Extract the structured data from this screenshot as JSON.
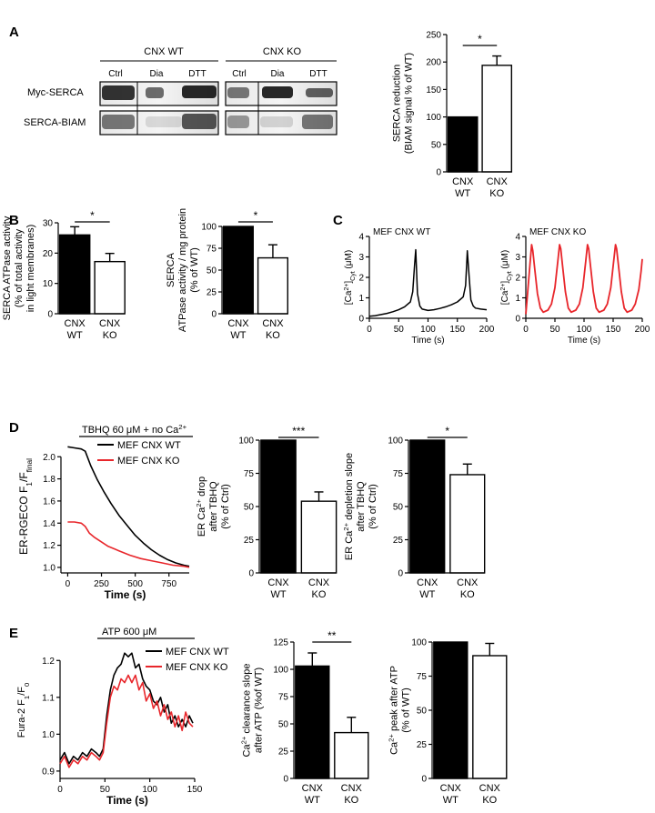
{
  "panel_labels": {
    "A": "A",
    "B": "B",
    "C": "C",
    "D": "D",
    "E": "E"
  },
  "blot": {
    "groups": [
      "CNX WT",
      "CNX KO"
    ],
    "lanes": [
      "Ctrl",
      "Dia",
      "DTT",
      "Ctrl",
      "Dia",
      "DTT"
    ],
    "rows": [
      "Myc-SERCA",
      "SERCA-BIAM"
    ]
  },
  "colors": {
    "wt": "#000000",
    "ko": "#ffffff",
    "trace_ko": "#e8262b"
  },
  "chart_data": [
    {
      "id": "A_bar",
      "type": "bar",
      "categories": [
        "CNX WT",
        "CNX KO"
      ],
      "values": [
        100,
        194
      ],
      "errors": [
        0,
        17
      ],
      "ylim": [
        0,
        250
      ],
      "yticks": [
        0,
        50,
        100,
        150,
        200,
        250
      ],
      "ylabel": [
        "SERCA reduction",
        "(BIAM signal % of WT)"
      ],
      "significance": "*"
    },
    {
      "id": "B_bar1",
      "type": "bar",
      "categories": [
        "CNX WT",
        "CNX KO"
      ],
      "values": [
        26,
        17.2
      ],
      "errors": [
        2.7,
        2.7
      ],
      "ylim": [
        0,
        30
      ],
      "yticks": [
        0,
        10,
        20,
        30
      ],
      "ylabel": [
        "SERCA ATPase activity",
        "(% of total activity",
        "in light membranes)"
      ],
      "significance": "*"
    },
    {
      "id": "B_bar2",
      "type": "bar",
      "categories": [
        "CNX WT",
        "CNX KO"
      ],
      "values": [
        100,
        64
      ],
      "errors": [
        0,
        15
      ],
      "ylim": [
        0,
        100
      ],
      "yticks": [
        0,
        25,
        50,
        75,
        100
      ],
      "ylabel": [
        "SERCA",
        "ATPase activity / mg protein",
        "(% of WT)"
      ],
      "significance": "*"
    },
    {
      "id": "C_wt",
      "type": "line",
      "title": "MEF CNX WT",
      "xlabel": "Time (s)",
      "ylabel": "[Ca2+]Cyt (μM)",
      "xlim": [
        0,
        200
      ],
      "ylim": [
        0,
        4
      ],
      "xticks": [
        0,
        50,
        100,
        150,
        200
      ],
      "yticks": [
        0,
        1,
        2,
        3,
        4
      ],
      "series": [
        {
          "color": "#000000",
          "x": [
            0,
            10,
            20,
            30,
            40,
            50,
            60,
            70,
            74,
            77,
            79,
            82,
            86,
            90,
            100,
            110,
            120,
            130,
            140,
            150,
            160,
            164,
            167,
            170,
            173,
            177,
            181,
            190,
            200
          ],
          "y": [
            0.1,
            0.13,
            0.18,
            0.24,
            0.32,
            0.42,
            0.56,
            0.8,
            1.3,
            2.6,
            3.35,
            1.2,
            0.6,
            0.45,
            0.38,
            0.42,
            0.48,
            0.56,
            0.66,
            0.8,
            1.05,
            1.6,
            3.3,
            2.1,
            0.9,
            0.6,
            0.5,
            0.45,
            0.42
          ]
        }
      ]
    },
    {
      "id": "C_ko",
      "type": "line",
      "title": "MEF CNX KO",
      "xlabel": "Time (s)",
      "ylabel": "[Ca2+]Cyt (μM)",
      "xlim": [
        0,
        200
      ],
      "ylim": [
        0,
        4
      ],
      "xticks": [
        0,
        50,
        100,
        150,
        200
      ],
      "yticks": [
        0,
        1,
        2,
        3,
        4
      ],
      "series": [
        {
          "color": "#e8262b",
          "x": [
            0,
            3,
            7,
            10,
            12,
            15,
            20,
            25,
            30,
            38,
            44,
            50,
            55,
            58,
            60,
            63,
            68,
            73,
            78,
            86,
            92,
            98,
            103,
            106,
            108,
            111,
            116,
            121,
            126,
            134,
            140,
            146,
            151,
            154,
            156,
            159,
            164,
            169,
            174,
            182,
            188,
            194,
            198,
            200
          ],
          "y": [
            0.2,
            1.2,
            2.6,
            3.6,
            3.3,
            2.5,
            1.2,
            0.5,
            0.3,
            0.4,
            0.7,
            1.5,
            2.8,
            3.6,
            3.4,
            2.6,
            1.3,
            0.5,
            0.3,
            0.4,
            0.7,
            1.5,
            2.8,
            3.6,
            3.4,
            2.6,
            1.3,
            0.5,
            0.3,
            0.4,
            0.7,
            1.5,
            2.8,
            3.6,
            3.4,
            2.6,
            1.3,
            0.5,
            0.3,
            0.4,
            0.7,
            1.4,
            2.3,
            2.9
          ]
        }
      ]
    },
    {
      "id": "D_trace",
      "type": "line",
      "annotation": "TBHQ 60 μM + no Ca2+",
      "xlabel": "Time (s)",
      "ylabel": "ER-RGECO F1/Ffinal",
      "xlim": [
        -50,
        900
      ],
      "ylim": [
        0.95,
        2.15
      ],
      "xticks": [
        0,
        250,
        500,
        750
      ],
      "yticks": [
        1.0,
        1.2,
        1.4,
        1.6,
        1.8,
        2.0
      ],
      "ytick_labels": [
        "1.0",
        "1.2",
        "1.4",
        "1.6",
        "1.8",
        "2.0"
      ],
      "series": [
        {
          "name": "MEF CNX WT",
          "color": "#000000",
          "x": [
            0,
            50,
            100,
            130,
            170,
            220,
            270,
            320,
            380,
            440,
            500,
            560,
            620,
            680,
            740,
            800,
            860,
            900
          ],
          "y": [
            2.09,
            2.08,
            2.07,
            2.05,
            1.92,
            1.79,
            1.68,
            1.58,
            1.47,
            1.38,
            1.29,
            1.22,
            1.16,
            1.11,
            1.07,
            1.04,
            1.02,
            1.01
          ]
        },
        {
          "name": "MEF CNX KO",
          "color": "#e8262b",
          "x": [
            0,
            50,
            100,
            130,
            160,
            200,
            250,
            300,
            380,
            460,
            540,
            620,
            700,
            780,
            860,
            900
          ],
          "y": [
            1.41,
            1.41,
            1.4,
            1.37,
            1.31,
            1.27,
            1.23,
            1.19,
            1.15,
            1.11,
            1.08,
            1.06,
            1.04,
            1.02,
            1.01,
            1.0
          ]
        }
      ]
    },
    {
      "id": "D_bar1",
      "type": "bar",
      "categories": [
        "CNX WT",
        "CNX KO"
      ],
      "values": [
        100,
        54
      ],
      "errors": [
        0,
        7
      ],
      "ylim": [
        0,
        100
      ],
      "yticks": [
        0,
        25,
        50,
        75,
        100
      ],
      "ylabel": [
        "ER Ca2+ drop",
        "after TBHQ",
        "(% of Ctrl)"
      ],
      "significance": "***"
    },
    {
      "id": "D_bar2",
      "type": "bar",
      "categories": [
        "CNX WT",
        "CNX KO"
      ],
      "values": [
        100,
        74
      ],
      "errors": [
        0,
        8
      ],
      "ylim": [
        0,
        100
      ],
      "yticks": [
        0,
        25,
        50,
        75,
        100
      ],
      "ylabel": [
        "ER Ca2+ depletion slope",
        "after TBHQ",
        "(% of Ctrl)"
      ],
      "significance": "*"
    },
    {
      "id": "E_trace",
      "type": "line",
      "annotation": "ATP 600 μM",
      "xlabel": "Time (s)",
      "ylabel": "Fura-2 F1/F0",
      "xlim": [
        0,
        150
      ],
      "ylim": [
        0.88,
        1.25
      ],
      "xticks": [
        0,
        50,
        100,
        150
      ],
      "yticks": [
        0.9,
        1.0,
        1.1,
        1.2
      ],
      "ytick_labels": [
        "0.9",
        "1.0",
        "1.1",
        "1.2"
      ],
      "series": [
        {
          "name": "MEF CNX WT",
          "color": "#000000",
          "x": [
            0,
            5,
            10,
            15,
            20,
            25,
            30,
            35,
            40,
            44,
            48,
            52,
            56,
            60,
            64,
            68,
            72,
            76,
            80,
            84,
            88,
            92,
            96,
            100,
            104,
            108,
            112,
            116,
            120,
            124,
            128,
            132,
            136,
            140,
            144,
            148
          ],
          "y": [
            0.93,
            0.95,
            0.92,
            0.94,
            0.93,
            0.95,
            0.94,
            0.96,
            0.95,
            0.94,
            0.96,
            1.05,
            1.12,
            1.16,
            1.18,
            1.19,
            1.22,
            1.21,
            1.22,
            1.18,
            1.19,
            1.15,
            1.13,
            1.12,
            1.09,
            1.08,
            1.1,
            1.06,
            1.08,
            1.03,
            1.05,
            1.02,
            1.04,
            1.02,
            1.05,
            1.03
          ]
        },
        {
          "name": "MEF CNX KO",
          "color": "#e8262b",
          "x": [
            0,
            5,
            10,
            15,
            20,
            25,
            30,
            35,
            40,
            44,
            48,
            52,
            56,
            60,
            64,
            68,
            72,
            76,
            80,
            84,
            88,
            92,
            96,
            100,
            104,
            108,
            112,
            116,
            120,
            124,
            128,
            132,
            136,
            140,
            144,
            148
          ],
          "y": [
            0.92,
            0.94,
            0.91,
            0.93,
            0.92,
            0.94,
            0.93,
            0.95,
            0.94,
            0.93,
            0.95,
            1.03,
            1.1,
            1.13,
            1.12,
            1.15,
            1.14,
            1.16,
            1.14,
            1.16,
            1.12,
            1.14,
            1.09,
            1.11,
            1.07,
            1.09,
            1.05,
            1.08,
            1.04,
            1.06,
            1.02,
            1.05,
            1.01,
            1.06,
            1.03,
            1.02
          ]
        }
      ]
    },
    {
      "id": "E_bar1",
      "type": "bar",
      "categories": [
        "CNX WT",
        "CNX KO"
      ],
      "values": [
        103,
        42
      ],
      "errors": [
        12,
        14
      ],
      "ylim": [
        0,
        125
      ],
      "yticks": [
        0,
        25,
        50,
        75,
        100,
        125
      ],
      "ylabel": [
        "Ca2+ clearance slope",
        "after ATP (%of WT)"
      ],
      "significance": "**"
    },
    {
      "id": "E_bar2",
      "type": "bar",
      "categories": [
        "CNX WT",
        "CNX KO"
      ],
      "values": [
        100,
        90
      ],
      "errors": [
        0,
        9
      ],
      "ylim": [
        0,
        100
      ],
      "yticks": [
        0,
        25,
        50,
        75,
        100
      ],
      "ylabel": [
        "Ca2+ peak after ATP",
        "(% of WT)"
      ],
      "significance": ""
    }
  ]
}
